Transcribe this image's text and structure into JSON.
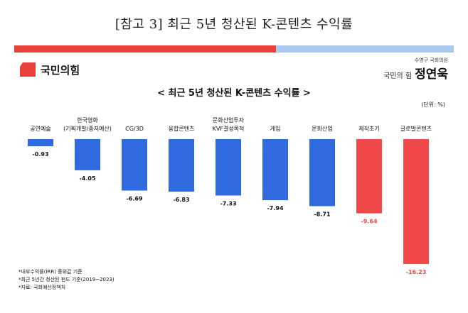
{
  "document": {
    "title": "[참고 3] 최근 5년 청산된 K-콘텐츠 수익률"
  },
  "header": {
    "party_logo_text": "국민의힘",
    "signature_top": "수영구 국회의원",
    "signature_party": "국민의 힘",
    "signature_name": "정연욱"
  },
  "colors": {
    "negative_blue": "#2f6ae0",
    "highlight_red": "#f04848",
    "top_bar_red": "#e8413c",
    "top_bar_blue": "#a9c9ef"
  },
  "chart_data": {
    "type": "bar",
    "title": "< 최근 5년 청산된 K-콘텐츠 수익률 >",
    "unit": "(단위: %)",
    "categories": [
      "공연예술",
      "한국영화\n(기획개발/중저예산)",
      "CG/3D",
      "융합콘텐츠",
      "문화산업투자\nKVF결성목적",
      "게임",
      "문화산업",
      "제작초기",
      "글로벌콘텐츠"
    ],
    "values": [
      -0.93,
      -4.05,
      -6.69,
      -6.83,
      -7.33,
      -7.94,
      -8.71,
      -9.64,
      -16.23
    ],
    "value_labels": [
      "-0.93",
      "-4.05",
      "-6.69",
      "-6.83",
      "-7.33",
      "-7.94",
      "-8.71",
      "-9.64",
      "-16.23"
    ],
    "highlight": [
      false,
      false,
      false,
      false,
      false,
      false,
      false,
      true,
      true
    ],
    "ylim": [
      -16.23,
      0
    ],
    "grid": false,
    "legend": "none"
  },
  "footnotes": [
    "*내부수익률(IRR) 중위값 기준",
    "*최근 5년간 청산된 펀드 기준(2019~2023)",
    "*자료: 국회예산정책처"
  ]
}
